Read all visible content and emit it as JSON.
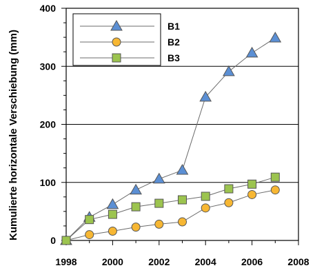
{
  "chart_data": {
    "type": "line",
    "xlabel": "",
    "ylabel": "Kumulierte horizontale Verschiebung (mm)",
    "xlim": [
      1998,
      2008
    ],
    "ylim": [
      0,
      400
    ],
    "x_ticks": [
      1998,
      2000,
      2002,
      2004,
      2006,
      2008
    ],
    "y_ticks": [
      0,
      100,
      200,
      300,
      400
    ],
    "grid": "horizontal",
    "legend_position": "top-left",
    "series": [
      {
        "name": "B1",
        "marker": "triangle",
        "color": "#5b8fd4",
        "x": [
          1998,
          1999,
          2000,
          2001,
          2002,
          2003,
          2004,
          2005,
          2006,
          2007
        ],
        "y": [
          0,
          40,
          62,
          87,
          106,
          121,
          247,
          291,
          323,
          349
        ]
      },
      {
        "name": "B2",
        "marker": "circle",
        "color": "#f7b733",
        "x": [
          1998,
          1999,
          2000,
          2001,
          2002,
          2003,
          2004,
          2005,
          2006,
          2007
        ],
        "y": [
          0,
          10,
          16,
          23,
          28,
          32,
          56,
          65,
          79,
          87
        ]
      },
      {
        "name": "B3",
        "marker": "square",
        "color": "#9cc44f",
        "x": [
          1998,
          1999,
          2000,
          2001,
          2002,
          2003,
          2004,
          2005,
          2006,
          2007
        ],
        "y": [
          0,
          36,
          45,
          58,
          64,
          70,
          76,
          89,
          97,
          109
        ]
      }
    ]
  }
}
